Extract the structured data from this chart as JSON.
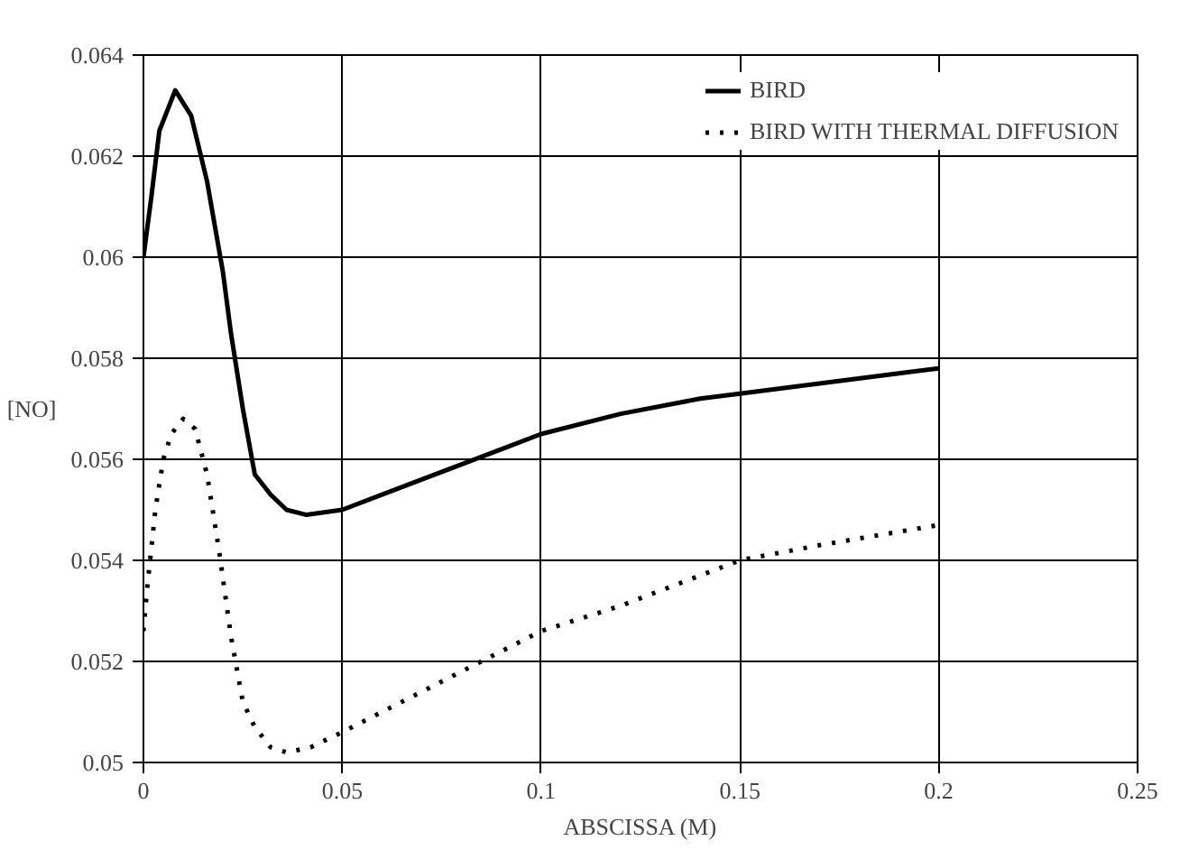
{
  "chart_data": {
    "type": "line",
    "xlabel": "ABSCISSA (M)",
    "ylabel": "[NO]",
    "xlim": [
      0,
      0.25
    ],
    "xticks": [
      0,
      0.05,
      0.1,
      0.15,
      0.2,
      0.25
    ],
    "ylim": [
      0.05,
      0.064
    ],
    "yticks": [
      0.05,
      0.052,
      0.054,
      0.056,
      0.058,
      0.06,
      0.062,
      0.064
    ],
    "grid": true,
    "legend": "top right",
    "series": [
      {
        "name": "BIRD",
        "color": "#000000",
        "line_style": "solid",
        "x": [
          0,
          0.002,
          0.004,
          0.008,
          0.012,
          0.016,
          0.02,
          0.022,
          0.025,
          0.028,
          0.032,
          0.036,
          0.041,
          0.05,
          0.06,
          0.07,
          0.08,
          0.09,
          0.1,
          0.12,
          0.14,
          0.15,
          0.17,
          0.19,
          0.2
        ],
        "values": [
          0.06,
          0.0612,
          0.0625,
          0.0633,
          0.0628,
          0.0615,
          0.0597,
          0.0585,
          0.057,
          0.0557,
          0.0553,
          0.055,
          0.0549,
          0.055,
          0.0553,
          0.0556,
          0.0559,
          0.0562,
          0.0565,
          0.0569,
          0.0572,
          0.0573,
          0.0575,
          0.0577,
          0.0578
        ]
      },
      {
        "name": "BIRD WITH THERMAL DIFFUSION",
        "color": "#000000",
        "line_style": "dotted",
        "x": [
          0,
          0.001,
          0.003,
          0.005,
          0.007,
          0.01,
          0.013,
          0.016,
          0.019,
          0.022,
          0.025,
          0.028,
          0.032,
          0.036,
          0.042,
          0.05,
          0.06,
          0.07,
          0.08,
          0.09,
          0.1,
          0.12,
          0.14,
          0.15,
          0.17,
          0.2
        ],
        "values": [
          0.0526,
          0.0535,
          0.055,
          0.056,
          0.0565,
          0.0568,
          0.0566,
          0.0557,
          0.0542,
          0.0525,
          0.0512,
          0.0507,
          0.0503,
          0.0502,
          0.0503,
          0.0506,
          0.051,
          0.0514,
          0.0518,
          0.0522,
          0.0526,
          0.0531,
          0.0537,
          0.054,
          0.0543,
          0.0547
        ]
      }
    ]
  }
}
